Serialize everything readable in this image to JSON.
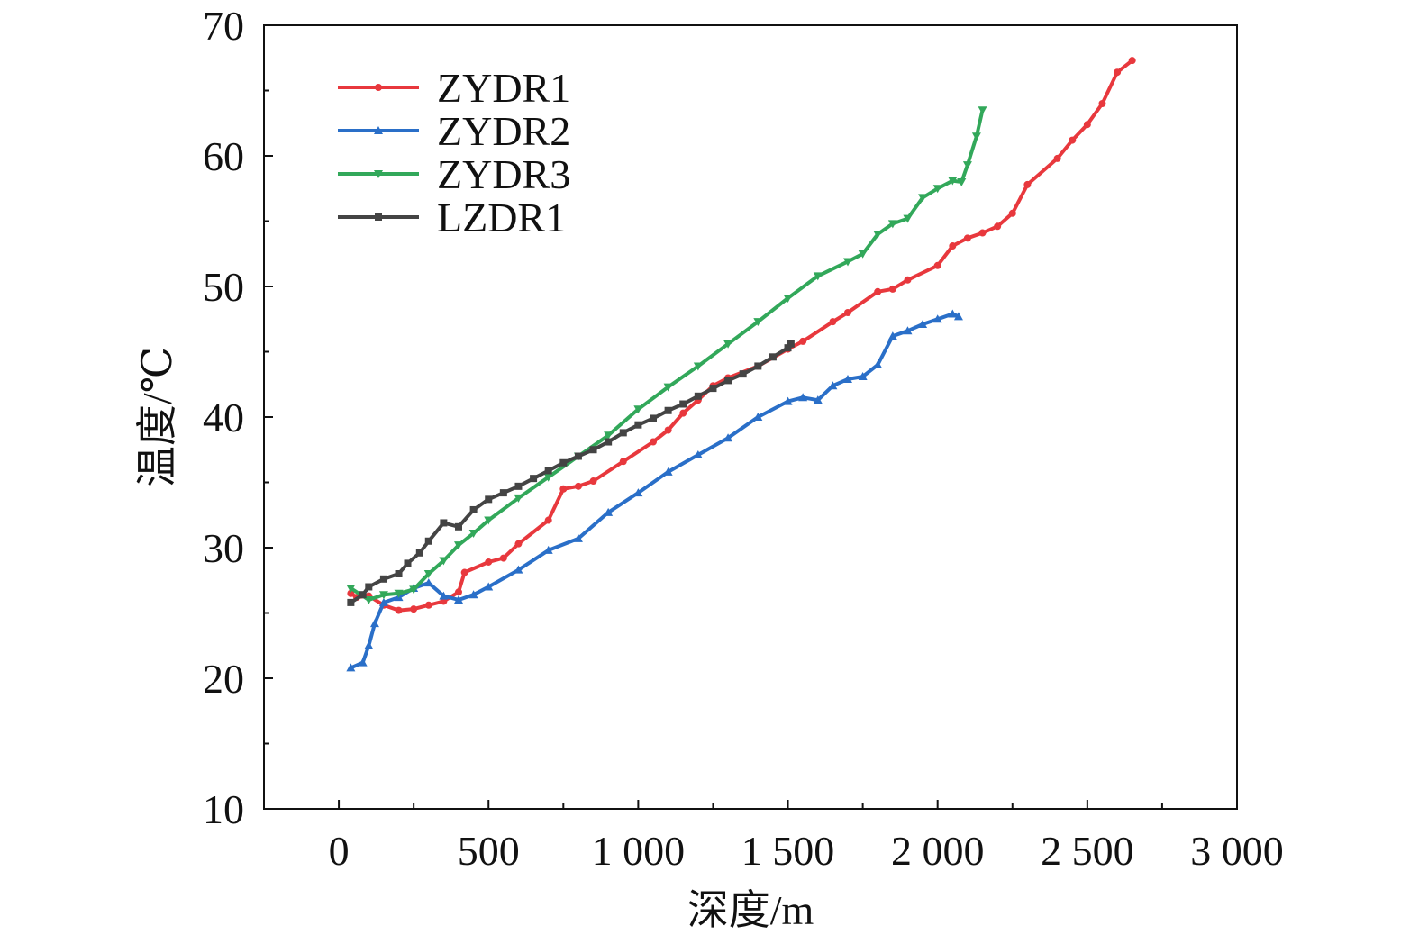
{
  "chart_data": {
    "type": "line",
    "xlabel": "深度/m",
    "ylabel": "温度/℃",
    "xlim": [
      -250,
      3000
    ],
    "ylim": [
      10,
      70
    ],
    "x_ticks": [
      0,
      500,
      1000,
      1500,
      2000,
      2500,
      3000
    ],
    "x_tick_labels": [
      "0",
      "500",
      "1 000",
      "1 500",
      "2 000",
      "2 500",
      "3 000"
    ],
    "y_ticks": [
      10,
      20,
      30,
      40,
      50,
      60,
      70
    ],
    "y_tick_labels": [
      "10",
      "20",
      "30",
      "40",
      "50",
      "60",
      "70"
    ],
    "grid": false,
    "legend_position": "top-left",
    "series": [
      {
        "name": "ZYDR1",
        "color": "#e8383d",
        "marker": "circle",
        "points": [
          [
            40,
            26.5
          ],
          [
            60,
            26.2
          ],
          [
            100,
            26.3
          ],
          [
            150,
            25.6
          ],
          [
            200,
            25.2
          ],
          [
            250,
            25.3
          ],
          [
            300,
            25.6
          ],
          [
            350,
            25.9
          ],
          [
            400,
            26.6
          ],
          [
            420,
            28.1
          ],
          [
            500,
            28.9
          ],
          [
            550,
            29.2
          ],
          [
            600,
            30.3
          ],
          [
            700,
            32.1
          ],
          [
            750,
            34.5
          ],
          [
            800,
            34.7
          ],
          [
            850,
            35.1
          ],
          [
            950,
            36.6
          ],
          [
            1050,
            38.1
          ],
          [
            1100,
            39.0
          ],
          [
            1150,
            40.3
          ],
          [
            1200,
            41.3
          ],
          [
            1250,
            42.4
          ],
          [
            1300,
            43.0
          ],
          [
            1400,
            43.9
          ],
          [
            1500,
            45.2
          ],
          [
            1550,
            45.8
          ],
          [
            1650,
            47.3
          ],
          [
            1700,
            48.0
          ],
          [
            1800,
            49.6
          ],
          [
            1850,
            49.8
          ],
          [
            1900,
            50.5
          ],
          [
            2000,
            51.6
          ],
          [
            2050,
            53.1
          ],
          [
            2100,
            53.7
          ],
          [
            2150,
            54.1
          ],
          [
            2200,
            54.6
          ],
          [
            2250,
            55.6
          ],
          [
            2300,
            57.8
          ],
          [
            2400,
            59.8
          ],
          [
            2450,
            61.2
          ],
          [
            2500,
            62.4
          ],
          [
            2550,
            64.0
          ],
          [
            2600,
            66.4
          ],
          [
            2650,
            67.3
          ]
        ]
      },
      {
        "name": "ZYDR2",
        "color": "#2a6fc8",
        "marker": "triangle-up",
        "points": [
          [
            40,
            20.8
          ],
          [
            80,
            21.2
          ],
          [
            100,
            22.5
          ],
          [
            120,
            24.2
          ],
          [
            150,
            25.8
          ],
          [
            200,
            26.2
          ],
          [
            250,
            26.9
          ],
          [
            300,
            27.3
          ],
          [
            350,
            26.3
          ],
          [
            400,
            26.0
          ],
          [
            450,
            26.4
          ],
          [
            500,
            27.0
          ],
          [
            600,
            28.3
          ],
          [
            700,
            29.8
          ],
          [
            800,
            30.7
          ],
          [
            900,
            32.7
          ],
          [
            1000,
            34.2
          ],
          [
            1100,
            35.8
          ],
          [
            1200,
            37.1
          ],
          [
            1300,
            38.4
          ],
          [
            1400,
            40.0
          ],
          [
            1500,
            41.2
          ],
          [
            1550,
            41.5
          ],
          [
            1600,
            41.3
          ],
          [
            1650,
            42.4
          ],
          [
            1700,
            42.9
          ],
          [
            1750,
            43.1
          ],
          [
            1800,
            44.0
          ],
          [
            1850,
            46.2
          ],
          [
            1900,
            46.6
          ],
          [
            1950,
            47.1
          ],
          [
            2000,
            47.5
          ],
          [
            2050,
            47.9
          ],
          [
            2070,
            47.7
          ]
        ]
      },
      {
        "name": "ZYDR3",
        "color": "#32a85a",
        "marker": "triangle-down",
        "points": [
          [
            40,
            26.9
          ],
          [
            100,
            26.0
          ],
          [
            150,
            26.4
          ],
          [
            200,
            26.5
          ],
          [
            250,
            26.8
          ],
          [
            300,
            28.0
          ],
          [
            350,
            29.0
          ],
          [
            400,
            30.2
          ],
          [
            450,
            31.1
          ],
          [
            500,
            32.1
          ],
          [
            600,
            33.8
          ],
          [
            700,
            35.4
          ],
          [
            800,
            37.0
          ],
          [
            900,
            38.6
          ],
          [
            1000,
            40.6
          ],
          [
            1100,
            42.3
          ],
          [
            1200,
            43.9
          ],
          [
            1300,
            45.6
          ],
          [
            1400,
            47.3
          ],
          [
            1500,
            49.1
          ],
          [
            1600,
            50.8
          ],
          [
            1700,
            51.9
          ],
          [
            1750,
            52.5
          ],
          [
            1800,
            54.0
          ],
          [
            1850,
            54.8
          ],
          [
            1900,
            55.2
          ],
          [
            1950,
            56.8
          ],
          [
            2000,
            57.5
          ],
          [
            2050,
            58.1
          ],
          [
            2080,
            58.0
          ],
          [
            2100,
            59.3
          ],
          [
            2130,
            61.5
          ],
          [
            2150,
            63.5
          ]
        ]
      },
      {
        "name": "LZDR1",
        "color": "#444444",
        "marker": "square",
        "points": [
          [
            40,
            25.8
          ],
          [
            80,
            26.4
          ],
          [
            100,
            27.0
          ],
          [
            150,
            27.6
          ],
          [
            200,
            28.0
          ],
          [
            230,
            28.8
          ],
          [
            270,
            29.6
          ],
          [
            300,
            30.5
          ],
          [
            350,
            31.9
          ],
          [
            400,
            31.6
          ],
          [
            450,
            32.9
          ],
          [
            500,
            33.7
          ],
          [
            550,
            34.2
          ],
          [
            600,
            34.7
          ],
          [
            650,
            35.3
          ],
          [
            700,
            35.9
          ],
          [
            750,
            36.5
          ],
          [
            800,
            37.0
          ],
          [
            850,
            37.5
          ],
          [
            900,
            38.1
          ],
          [
            950,
            38.8
          ],
          [
            1000,
            39.4
          ],
          [
            1050,
            39.9
          ],
          [
            1100,
            40.5
          ],
          [
            1150,
            41.0
          ],
          [
            1200,
            41.6
          ],
          [
            1250,
            42.2
          ],
          [
            1300,
            42.8
          ],
          [
            1350,
            43.3
          ],
          [
            1400,
            43.9
          ],
          [
            1450,
            44.6
          ],
          [
            1500,
            45.3
          ],
          [
            1510,
            45.6
          ]
        ]
      }
    ]
  }
}
